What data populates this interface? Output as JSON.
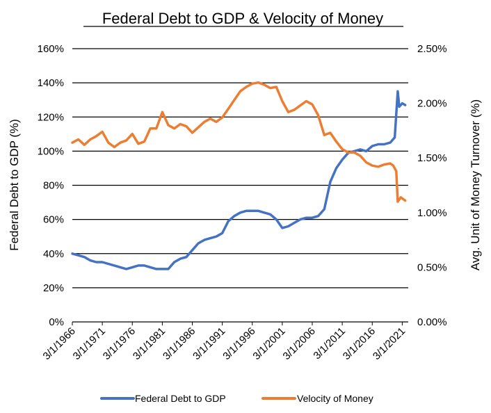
{
  "chart_data": {
    "type": "line",
    "title": "Federal Debt to GDP & Velocity of Money",
    "ylabel_left": "Federal Debt to GDP (%)",
    "ylabel_right": "Avg. Unit of Money Turnover (%)",
    "ylim_left": [
      0,
      160
    ],
    "ylim_right": [
      0.0,
      2.5
    ],
    "xlim": [
      1966,
      2022
    ],
    "grid": true,
    "legend_position": "bottom",
    "y_left_ticks": [
      0,
      20,
      40,
      60,
      80,
      100,
      120,
      140,
      160
    ],
    "y_left_tick_labels": [
      "0%",
      "20%",
      "40%",
      "60%",
      "80%",
      "100%",
      "120%",
      "140%",
      "160%"
    ],
    "y_right_ticks": [
      0.0,
      0.5,
      1.0,
      1.5,
      2.0,
      2.5
    ],
    "y_right_tick_labels": [
      "0.00%",
      "0.50%",
      "1.00%",
      "1.50%",
      "2.00%",
      "2.50%"
    ],
    "x_ticks": [
      1966,
      1971,
      1976,
      1981,
      1986,
      1991,
      1996,
      2001,
      2006,
      2011,
      2016,
      2021
    ],
    "x_tick_labels": [
      "3/1/1966",
      "3/1/1971",
      "3/1/1976",
      "3/1/1981",
      "3/1/1986",
      "3/1/1991",
      "3/1/1996",
      "3/1/2001",
      "3/1/2006",
      "3/1/2011",
      "3/1/2016",
      "3/1/2021"
    ],
    "series": [
      {
        "name": "Federal Debt to GDP",
        "axis": "left",
        "color": "#4472C4",
        "x": [
          1966,
          1967,
          1968,
          1969,
          1970,
          1971,
          1972,
          1973,
          1974,
          1975,
          1976,
          1977,
          1978,
          1979,
          1980,
          1981,
          1982,
          1983,
          1984,
          1985,
          1986,
          1987,
          1988,
          1989,
          1990,
          1991,
          1992,
          1993,
          1994,
          1995,
          1996,
          1997,
          1998,
          1999,
          2000,
          2001,
          2002,
          2003,
          2004,
          2005,
          2006,
          2007,
          2008,
          2009,
          2010,
          2011,
          2012,
          2013,
          2014,
          2015,
          2016,
          2017,
          2018,
          2019,
          2019.75,
          2020.25,
          2020.5,
          2021,
          2021.5
        ],
        "values": [
          40,
          39,
          38,
          36,
          35,
          35,
          34,
          33,
          32,
          31,
          32,
          33,
          33,
          32,
          31,
          31,
          31,
          35,
          37,
          38,
          42,
          46,
          48,
          49,
          50,
          52,
          59,
          62,
          64,
          65,
          65,
          65,
          64,
          63,
          60,
          55,
          56,
          58,
          60,
          61,
          61,
          62,
          66,
          82,
          90,
          95,
          99,
          100,
          101,
          100,
          103,
          104,
          104,
          105,
          108,
          135,
          126,
          128,
          127
        ]
      },
      {
        "name": "Velocity of Money",
        "axis": "right",
        "color": "#ED7D31",
        "x": [
          1966,
          1967,
          1968,
          1969,
          1970,
          1971,
          1972,
          1973,
          1974,
          1975,
          1976,
          1977,
          1978,
          1979,
          1980,
          1981,
          1982,
          1983,
          1984,
          1985,
          1986,
          1987,
          1988,
          1989,
          1990,
          1991,
          1992,
          1993,
          1994,
          1995,
          1996,
          1997,
          1998,
          1999,
          2000,
          2001,
          2002,
          2003,
          2004,
          2005,
          2006,
          2007,
          2008,
          2009,
          2010,
          2011,
          2012,
          2013,
          2014,
          2015,
          2016,
          2017,
          2018,
          2019,
          2019.5,
          2020,
          2020.25,
          2020.75,
          2021.5
        ],
        "values": [
          1.64,
          1.67,
          1.62,
          1.67,
          1.7,
          1.74,
          1.64,
          1.6,
          1.64,
          1.66,
          1.72,
          1.63,
          1.65,
          1.77,
          1.77,
          1.92,
          1.8,
          1.77,
          1.81,
          1.79,
          1.73,
          1.78,
          1.83,
          1.86,
          1.83,
          1.87,
          1.95,
          2.03,
          2.11,
          2.15,
          2.18,
          2.19,
          2.17,
          2.14,
          2.15,
          2.02,
          1.92,
          1.94,
          1.98,
          2.02,
          1.99,
          1.89,
          1.71,
          1.73,
          1.65,
          1.58,
          1.55,
          1.55,
          1.52,
          1.46,
          1.43,
          1.42,
          1.44,
          1.45,
          1.43,
          1.38,
          1.1,
          1.14,
          1.11
        ]
      }
    ]
  }
}
